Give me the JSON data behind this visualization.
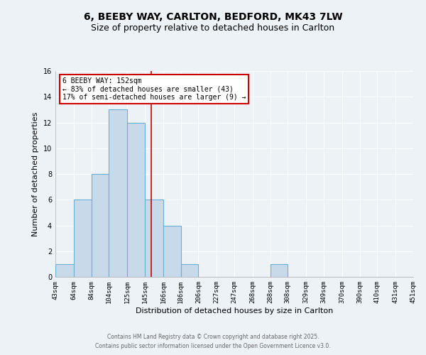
{
  "title": "6, BEEBY WAY, CARLTON, BEDFORD, MK43 7LW",
  "subtitle": "Size of property relative to detached houses in Carlton",
  "xlabel": "Distribution of detached houses by size in Carlton",
  "ylabel": "Number of detached properties",
  "bins": [
    43,
    64,
    84,
    104,
    125,
    145,
    166,
    186,
    206,
    227,
    247,
    268,
    288,
    308,
    329,
    349,
    370,
    390,
    410,
    431,
    451
  ],
  "counts": [
    1,
    6,
    8,
    13,
    12,
    6,
    4,
    1,
    0,
    0,
    0,
    0,
    1,
    0,
    0,
    0,
    0,
    0,
    0,
    0
  ],
  "bar_color": "#c8daea",
  "bar_edge_color": "#6aafd6",
  "vline_x": 152,
  "vline_color": "#cc0000",
  "ylim": [
    0,
    16
  ],
  "yticks": [
    0,
    2,
    4,
    6,
    8,
    10,
    12,
    14,
    16
  ],
  "annotation_line1": "6 BEEBY WAY: 152sqm",
  "annotation_line2": "← 83% of detached houses are smaller (43)",
  "annotation_line3": "17% of semi-detached houses are larger (9) →",
  "annotation_box_edge_color": "#cc0000",
  "annotation_box_face_color": "#ffffff",
  "footer_line1": "Contains HM Land Registry data © Crown copyright and database right 2025.",
  "footer_line2": "Contains public sector information licensed under the Open Government Licence v3.0.",
  "background_color": "#edf2f7",
  "grid_color": "#ffffff",
  "title_fontsize": 10,
  "subtitle_fontsize": 9,
  "axis_label_fontsize": 8,
  "tick_fontsize": 6.5,
  "tick_labels": [
    "43sqm",
    "64sqm",
    "84sqm",
    "104sqm",
    "125sqm",
    "145sqm",
    "166sqm",
    "186sqm",
    "206sqm",
    "227sqm",
    "247sqm",
    "268sqm",
    "288sqm",
    "308sqm",
    "329sqm",
    "349sqm",
    "370sqm",
    "390sqm",
    "410sqm",
    "431sqm",
    "451sqm"
  ]
}
